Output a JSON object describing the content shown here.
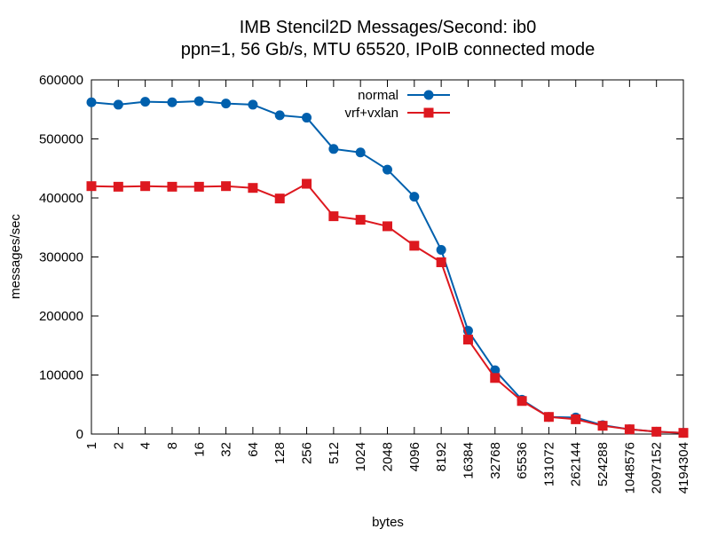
{
  "chart_data": {
    "type": "line",
    "title_lines": [
      "IMB Stencil2D Messages/Second: ib0",
      "ppn=1, 56 Gb/s, MTU 65520, IPoIB connected mode"
    ],
    "xlabel": "bytes",
    "ylabel": "messages/sec",
    "categories": [
      "1",
      "2",
      "4",
      "8",
      "16",
      "32",
      "64",
      "128",
      "256",
      "512",
      "1024",
      "2048",
      "4096",
      "8192",
      "16384",
      "32768",
      "65536",
      "131072",
      "262144",
      "524288",
      "1048576",
      "2097152",
      "4194304"
    ],
    "ylim": [
      0,
      600000
    ],
    "yticks": [
      0,
      100000,
      200000,
      300000,
      400000,
      500000,
      600000
    ],
    "ytick_labels": [
      "0",
      "100000",
      "200000",
      "300000",
      "400000",
      "500000",
      "600000"
    ],
    "grid": false,
    "legend_position": "top-center",
    "series": [
      {
        "name": "normal",
        "color": "#0060ad",
        "marker": "circle",
        "values": [
          562000,
          558000,
          563000,
          562000,
          564000,
          560000,
          558000,
          540000,
          536000,
          483000,
          477000,
          448000,
          402000,
          312000,
          175000,
          108000,
          58000,
          29000,
          28000,
          15000,
          8000,
          4000,
          2000
        ]
      },
      {
        "name": "vrf+vxlan",
        "color": "#dd181f",
        "marker": "square",
        "values": [
          420000,
          419000,
          420000,
          419000,
          419000,
          420000,
          417000,
          399000,
          424000,
          369000,
          363000,
          352000,
          319000,
          291000,
          160000,
          95000,
          56000,
          29000,
          25000,
          14000,
          8000,
          4000,
          2000
        ]
      }
    ]
  }
}
